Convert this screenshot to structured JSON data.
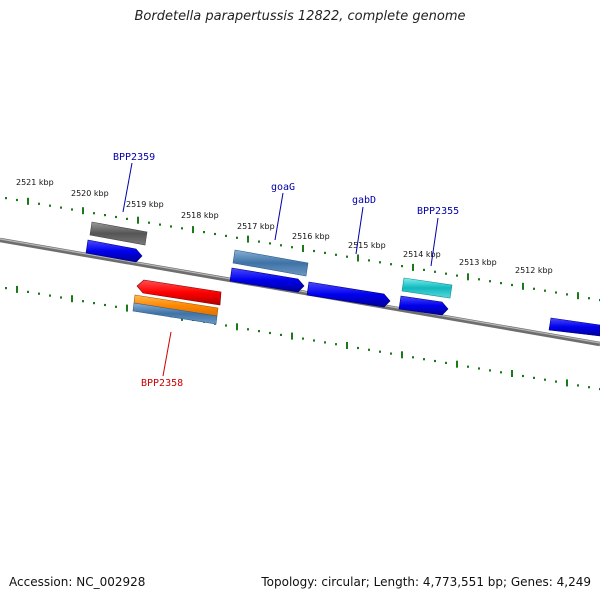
{
  "title": "Bordetella parapertussis 12822, complete genome",
  "footer": {
    "accession": "Accession: NC_002928",
    "summary": "Topology: circular; Length: 4,773,551 bp; Genes: 4,249"
  },
  "scale_ticks": [
    "2521 kbp",
    "2520 kbp",
    "2519 kbp",
    "2518 kbp",
    "2517 kbp",
    "2516 kbp",
    "2515 kbp",
    "2514 kbp",
    "2513 kbp",
    "2512 kbp"
  ],
  "genes": [
    {
      "name": "BPP2359",
      "color": "#0000aa"
    },
    {
      "name": "goaG",
      "color": "#0000aa"
    },
    {
      "name": "gabD",
      "color": "#0000aa"
    },
    {
      "name": "BPP2355",
      "color": "#0000aa"
    },
    {
      "name": "BPP2358",
      "color": "#cc0000"
    }
  ],
  "colors": {
    "backbone": "#808080",
    "scale_dots": "#1a7a1a",
    "cds_forward": "#0000ee",
    "cds_reverse": "#ff0000",
    "gene_grey": "#666666",
    "gene_steelblue": "#4a7fb0",
    "gene_cyan": "#22c4c8",
    "gene_orange": "#ff8c00"
  }
}
